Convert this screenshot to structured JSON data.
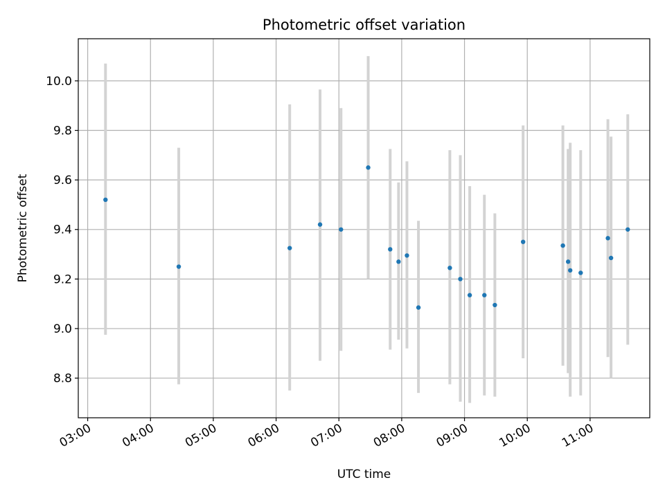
{
  "chart_data": {
    "type": "scatter",
    "title": "Photometric offset variation",
    "xlabel": "UTC time",
    "ylabel": "Photometric offset",
    "xlim": [
      "02:51",
      "11:57"
    ],
    "ylim": [
      8.64,
      10.17
    ],
    "x_ticks": [
      "03:00",
      "04:00",
      "05:00",
      "06:00",
      "07:00",
      "08:00",
      "09:00",
      "10:00",
      "11:00"
    ],
    "y_ticks": [
      8.8,
      9.0,
      9.2,
      9.4,
      9.6,
      9.8,
      10.0
    ],
    "grid": true,
    "colors": {
      "point": "#1f77b4",
      "errorbar": "#d3d3d3",
      "grid": "#b0b0b0"
    },
    "series": [
      {
        "points": [
          {
            "x": "03:17",
            "y": 9.52,
            "low": 8.975,
            "high": 10.07
          },
          {
            "x": "04:27",
            "y": 9.25,
            "low": 8.775,
            "high": 9.73
          },
          {
            "x": "06:13",
            "y": 9.325,
            "low": 8.75,
            "high": 9.905
          },
          {
            "x": "06:42",
            "y": 9.42,
            "low": 8.87,
            "high": 9.965
          },
          {
            "x": "07:02",
            "y": 9.4,
            "low": 8.91,
            "high": 9.89
          },
          {
            "x": "07:28",
            "y": 9.65,
            "low": 9.2,
            "high": 10.1
          },
          {
            "x": "07:49",
            "y": 9.32,
            "low": 8.915,
            "high": 9.725
          },
          {
            "x": "07:57",
            "y": 9.27,
            "low": 8.955,
            "high": 9.59
          },
          {
            "x": "08:05",
            "y": 9.295,
            "low": 8.92,
            "high": 9.675
          },
          {
            "x": "08:16",
            "y": 9.085,
            "low": 8.74,
            "high": 9.435
          },
          {
            "x": "08:46",
            "y": 9.245,
            "low": 8.775,
            "high": 9.72
          },
          {
            "x": "08:56",
            "y": 9.2,
            "low": 8.705,
            "high": 9.7
          },
          {
            "x": "09:05",
            "y": 9.135,
            "low": 8.7,
            "high": 9.575
          },
          {
            "x": "09:19",
            "y": 9.135,
            "low": 8.73,
            "high": 9.54
          },
          {
            "x": "09:29",
            "y": 9.095,
            "low": 8.725,
            "high": 9.465
          },
          {
            "x": "09:56",
            "y": 9.35,
            "low": 8.88,
            "high": 9.82
          },
          {
            "x": "10:34",
            "y": 9.335,
            "low": 8.85,
            "high": 9.82
          },
          {
            "x": "10:39",
            "y": 9.27,
            "low": 8.82,
            "high": 9.725
          },
          {
            "x": "10:41",
            "y": 9.235,
            "low": 8.725,
            "high": 9.75
          },
          {
            "x": "10:51",
            "y": 9.225,
            "low": 8.73,
            "high": 9.72
          },
          {
            "x": "11:17",
            "y": 9.365,
            "low": 8.885,
            "high": 9.845
          },
          {
            "x": "11:20",
            "y": 9.285,
            "low": 8.8,
            "high": 9.775
          },
          {
            "x": "11:36",
            "y": 9.4,
            "low": 8.935,
            "high": 9.865
          }
        ]
      }
    ]
  }
}
